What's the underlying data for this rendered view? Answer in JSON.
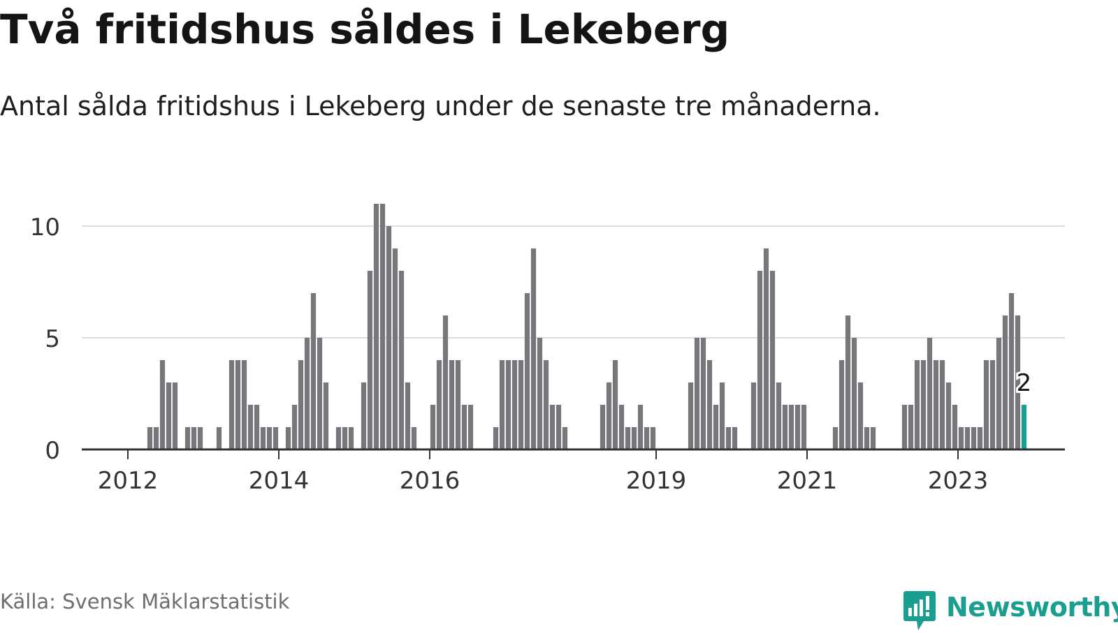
{
  "title": "Två fritidshus såldes i Lekeberg",
  "subtitle": "Antal sålda fritidshus i Lekeberg under de senaste tre månaderna.",
  "source": "Källa: Svensk Mäklarstatistik",
  "brand": "Newsworthy",
  "colors": {
    "bar": "#77767b",
    "highlight": "#1a9e8f",
    "grid": "#dddddd",
    "axis": "#333333",
    "brand": "#1a9e8f"
  },
  "chart_data": {
    "type": "bar",
    "title": "Två fritidshus såldes i Lekeberg",
    "subtitle": "Antal sålda fritidshus i Lekeberg under de senaste tre månaderna.",
    "xlabel": "",
    "ylabel": "",
    "ylim": [
      0,
      11
    ],
    "yticks": [
      0,
      5,
      10
    ],
    "xticks": [
      "2012",
      "2014",
      "2016",
      "2019",
      "2021",
      "2023"
    ],
    "grid": true,
    "x_first_month": "2011-01",
    "series": [
      {
        "values": [
          0,
          0,
          0,
          0,
          0,
          0,
          0,
          0,
          0,
          0,
          0,
          0,
          0,
          0,
          0,
          1,
          1,
          4,
          3,
          3,
          0,
          1,
          1,
          1,
          0,
          0,
          1,
          0,
          4,
          4,
          4,
          2,
          2,
          1,
          1,
          1,
          0,
          1,
          2,
          4,
          5,
          7,
          5,
          3,
          0,
          1,
          1,
          1,
          0,
          3,
          8,
          11,
          11,
          10,
          9,
          8,
          3,
          1,
          0,
          0,
          2,
          4,
          6,
          4,
          4,
          2,
          2,
          0,
          0,
          0,
          1,
          4,
          4,
          4,
          4,
          7,
          9,
          5,
          4,
          2,
          2,
          1,
          0,
          0,
          0,
          0,
          0,
          2,
          3,
          4,
          2,
          1,
          1,
          2,
          1,
          1,
          0,
          0,
          0,
          0,
          0,
          3,
          5,
          5,
          4,
          2,
          3,
          1,
          1,
          0,
          0,
          3,
          8,
          9,
          8,
          3,
          2,
          2,
          2,
          2,
          0,
          0,
          0,
          0,
          1,
          4,
          6,
          5,
          3,
          1,
          1,
          0,
          0,
          0,
          0,
          2,
          2,
          4,
          4,
          5,
          4,
          4,
          3,
          2,
          1,
          1,
          1,
          1,
          4,
          4,
          5,
          6,
          7,
          6,
          2
        ]
      }
    ],
    "highlight": {
      "x": "2023-11",
      "value": 2,
      "label": "2"
    }
  }
}
